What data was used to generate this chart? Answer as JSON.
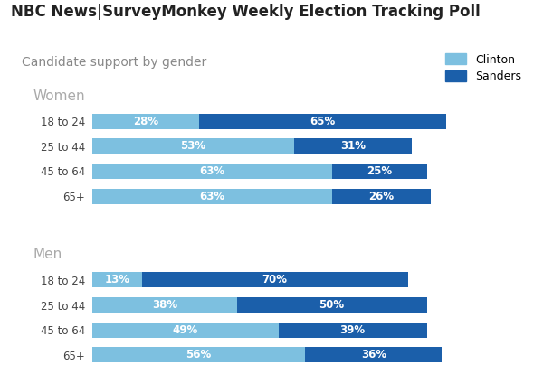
{
  "title": "NBC News|SurveyMonkey Weekly Election Tracking Poll",
  "subtitle": "Candidate support by gender",
  "title_color": "#222222",
  "subtitle_color": "#888888",
  "background_color": "#ffffff",
  "clinton_color": "#7dc0e0",
  "sanders_color": "#1b5faa",
  "label_color": "#ffffff",
  "group_label_color": "#aaaaaa",
  "ytick_color": "#444444",
  "women_labels": [
    "18 to 24",
    "25 to 44",
    "45 to 64",
    "65+"
  ],
  "women_clinton": [
    28,
    53,
    63,
    63
  ],
  "women_sanders": [
    65,
    31,
    25,
    26
  ],
  "men_labels": [
    "18 to 24",
    "25 to 44",
    "45 to 64",
    "65+"
  ],
  "men_clinton": [
    13,
    38,
    49,
    56
  ],
  "men_sanders": [
    70,
    50,
    39,
    36
  ],
  "bar_height": 0.62,
  "bar_gap": 0.12,
  "xlim": 100,
  "legend_clinton": "Clinton",
  "legend_sanders": "Sanders",
  "title_fontsize": 12,
  "subtitle_fontsize": 10,
  "group_label_fontsize": 11,
  "bar_label_fontsize": 8.5,
  "ytick_fontsize": 8.5
}
